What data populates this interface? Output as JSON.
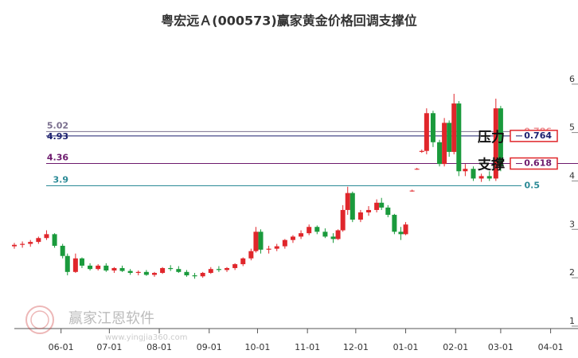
{
  "chart_data": {
    "type": "candlestick",
    "title": "粤宏远Ａ(000573)赢家黄金价格回调支撑位",
    "up_color": "#e0262b",
    "down_color": "#1a9a3c",
    "xlim": [
      0,
      350
    ],
    "ylim": [
      0.95,
      6.9
    ],
    "xticks": [
      {
        "value": 29,
        "label": "06-01"
      },
      {
        "value": 59,
        "label": "07-01"
      },
      {
        "value": 90,
        "label": "08-01"
      },
      {
        "value": 121,
        "label": "09-01"
      },
      {
        "value": 151,
        "label": "10-01"
      },
      {
        "value": 182,
        "label": "11-01"
      },
      {
        "value": 212,
        "label": "12-01"
      },
      {
        "value": 243,
        "label": "01-01"
      },
      {
        "value": 274,
        "label": "02-01"
      },
      {
        "value": 302,
        "label": "03-01"
      },
      {
        "value": 333,
        "label": "04-01"
      }
    ],
    "yticks": [
      1,
      2,
      3,
      4,
      5,
      6
    ],
    "x": [
      0,
      5,
      10,
      15,
      20,
      25,
      30,
      33,
      38,
      42,
      47,
      52,
      57,
      62,
      67,
      72,
      77,
      82,
      87,
      92,
      97,
      102,
      107,
      112,
      117,
      122,
      127,
      132,
      137,
      142,
      147,
      150,
      153,
      158,
      163,
      168,
      173,
      178,
      183,
      188,
      193,
      198,
      201,
      204,
      207,
      210,
      215,
      220,
      225,
      228,
      232,
      236,
      240,
      243,
      247,
      250,
      253,
      256,
      260,
      264,
      267,
      270,
      273,
      276,
      280,
      285,
      290,
      295,
      299,
      302
    ],
    "open": [
      2.65,
      2.68,
      2.7,
      2.74,
      2.82,
      2.9,
      2.66,
      2.45,
      2.12,
      2.4,
      2.25,
      2.18,
      2.25,
      2.15,
      2.2,
      2.14,
      2.1,
      2.12,
      2.06,
      2.1,
      2.2,
      2.18,
      2.12,
      2.05,
      2.03,
      2.1,
      2.18,
      2.16,
      2.2,
      2.28,
      2.4,
      2.55,
      2.95,
      2.58,
      2.6,
      2.65,
      2.78,
      2.85,
      2.92,
      3.05,
      2.95,
      2.85,
      2.8,
      2.98,
      3.4,
      3.75,
      3.2,
      3.35,
      3.4,
      3.55,
      3.45,
      3.3,
      2.95,
      2.9,
      3.8,
      4.25,
      4.6,
      4.62,
      5.4,
      4.8,
      4.35,
      5.2,
      4.6,
      5.6,
      4.2,
      4.25,
      4.05,
      4.1,
      4.05,
      5.5
    ],
    "high": [
      2.72,
      2.75,
      2.78,
      2.85,
      2.98,
      2.92,
      2.7,
      2.5,
      2.5,
      2.42,
      2.3,
      2.28,
      2.3,
      2.22,
      2.25,
      2.18,
      2.15,
      2.16,
      2.12,
      2.22,
      2.26,
      2.24,
      2.16,
      2.1,
      2.12,
      2.22,
      2.24,
      2.22,
      2.3,
      2.42,
      2.6,
      3.05,
      3.0,
      2.66,
      2.7,
      2.8,
      2.88,
      2.98,
      3.1,
      3.08,
      3.02,
      2.92,
      3.0,
      3.5,
      3.88,
      3.78,
      3.4,
      3.48,
      3.62,
      3.65,
      3.5,
      3.32,
      3.05,
      3.15,
      3.82,
      4.27,
      4.65,
      5.5,
      5.45,
      4.85,
      5.3,
      5.25,
      5.8,
      5.65,
      4.35,
      4.3,
      4.15,
      4.2,
      5.7,
      5.55
    ],
    "low": [
      2.6,
      2.62,
      2.64,
      2.7,
      2.78,
      2.62,
      2.4,
      2.05,
      2.1,
      2.2,
      2.15,
      2.15,
      2.12,
      2.1,
      2.12,
      2.06,
      2.05,
      2.04,
      2.02,
      2.08,
      2.14,
      2.1,
      2.02,
      1.98,
      2.0,
      2.08,
      2.12,
      2.12,
      2.16,
      2.24,
      2.36,
      2.52,
      2.5,
      2.5,
      2.55,
      2.6,
      2.72,
      2.8,
      2.88,
      2.9,
      2.82,
      2.72,
      2.78,
      2.95,
      3.3,
      3.15,
      3.15,
      3.28,
      3.35,
      3.4,
      3.25,
      2.9,
      2.78,
      2.88,
      3.78,
      4.23,
      4.58,
      4.55,
      4.7,
      4.3,
      4.3,
      4.5,
      4.55,
      4.1,
      4.1,
      4.0,
      3.98,
      4.0,
      4.0,
      4.2
    ],
    "close": [
      2.68,
      2.7,
      2.74,
      2.82,
      2.9,
      2.66,
      2.45,
      2.12,
      2.4,
      2.25,
      2.18,
      2.25,
      2.15,
      2.2,
      2.14,
      2.1,
      2.12,
      2.06,
      2.1,
      2.2,
      2.18,
      2.12,
      2.05,
      2.03,
      2.1,
      2.18,
      2.16,
      2.2,
      2.28,
      2.4,
      2.55,
      2.95,
      2.58,
      2.6,
      2.65,
      2.78,
      2.85,
      2.92,
      3.05,
      2.95,
      2.85,
      2.8,
      2.98,
      3.4,
      3.75,
      3.2,
      3.35,
      3.4,
      3.55,
      3.45,
      3.3,
      2.95,
      2.9,
      3.1,
      3.8,
      4.25,
      4.62,
      5.4,
      4.8,
      4.35,
      5.2,
      4.6,
      5.6,
      4.2,
      4.25,
      4.05,
      4.1,
      4.05,
      5.5,
      4.3
    ],
    "levels": [
      {
        "price": 5.02,
        "ratio": "0.786",
        "color": "#7a6f8e",
        "boxed": false
      },
      {
        "price": 4.93,
        "ratio": "0.764",
        "color": "#1b1f6e",
        "boxed": true
      },
      {
        "price": 4.36,
        "ratio": "0.618",
        "color": "#6d1a6d",
        "boxed": true
      },
      {
        "price": 3.9,
        "ratio": "0.5",
        "color": "#2b8a96",
        "boxed": false
      }
    ],
    "annotations": [
      {
        "text": "压力",
        "price": 4.93
      },
      {
        "text": "支撑",
        "price": 4.36
      }
    ],
    "watermark": "赢家江恩软件",
    "watermark_url": "www.yingjia360.com"
  }
}
